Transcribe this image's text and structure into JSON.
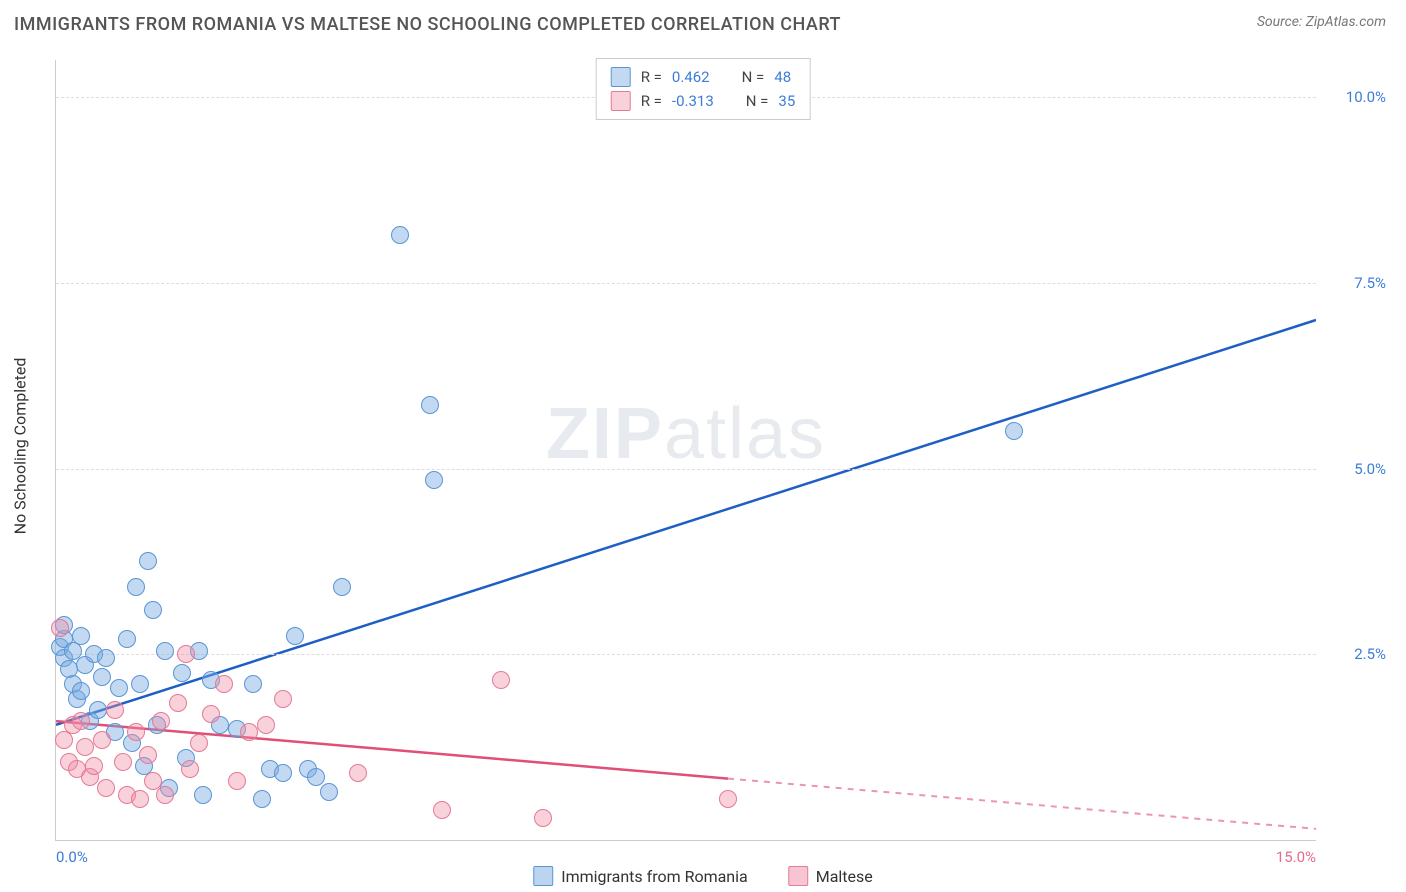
{
  "title": "IMMIGRANTS FROM ROMANIA VS MALTESE NO SCHOOLING COMPLETED CORRELATION CHART",
  "source": "Source: ZipAtlas.com",
  "y_axis_title": "No Schooling Completed",
  "watermark_zip": "ZIP",
  "watermark_atlas": "atlas",
  "chart": {
    "type": "scatter-with-regression",
    "xlim": [
      0,
      15
    ],
    "ylim": [
      0,
      10.5
    ],
    "x_ticks": [
      {
        "v": 0.0,
        "label": "0.0%",
        "color": "#3b7dd8"
      },
      {
        "v": 15.0,
        "label": "15.0%",
        "color": "#e86b8a"
      }
    ],
    "y_ticks": [
      {
        "v": 2.5,
        "label": "2.5%",
        "color": "#3b7dd8"
      },
      {
        "v": 5.0,
        "label": "5.0%",
        "color": "#3b7dd8"
      },
      {
        "v": 7.5,
        "label": "7.5%",
        "color": "#3b7dd8"
      },
      {
        "v": 10.0,
        "label": "10.0%",
        "color": "#3b7dd8"
      }
    ],
    "grid_color": "#dddddd",
    "background_color": "#ffffff",
    "series": [
      {
        "name": "Immigrants from Romania",
        "fill": "rgba(120,170,225,0.45)",
        "stroke": "#5b95d6",
        "line_color": "#1f5fc4",
        "r_label": "R = ",
        "r_value": "0.462",
        "n_label": "N = ",
        "n_value": "48",
        "regression": {
          "x1": 0.0,
          "y1": 1.55,
          "x2": 15.0,
          "y2": 7.0,
          "solid_until_x": 15.0
        },
        "points": [
          [
            0.05,
            2.6
          ],
          [
            0.1,
            2.45
          ],
          [
            0.1,
            2.7
          ],
          [
            0.1,
            2.9
          ],
          [
            0.15,
            2.3
          ],
          [
            0.2,
            2.1
          ],
          [
            0.2,
            2.55
          ],
          [
            0.25,
            1.9
          ],
          [
            0.3,
            2.75
          ],
          [
            0.3,
            2.0
          ],
          [
            0.35,
            2.35
          ],
          [
            0.4,
            1.6
          ],
          [
            0.45,
            2.5
          ],
          [
            0.5,
            1.75
          ],
          [
            0.55,
            2.2
          ],
          [
            0.6,
            2.45
          ],
          [
            0.7,
            1.45
          ],
          [
            0.75,
            2.05
          ],
          [
            0.85,
            2.7
          ],
          [
            0.9,
            1.3
          ],
          [
            0.95,
            3.4
          ],
          [
            1.0,
            2.1
          ],
          [
            1.05,
            1.0
          ],
          [
            1.1,
            3.75
          ],
          [
            1.15,
            3.1
          ],
          [
            1.2,
            1.55
          ],
          [
            1.3,
            2.55
          ],
          [
            1.35,
            0.7
          ],
          [
            1.5,
            2.25
          ],
          [
            1.55,
            1.1
          ],
          [
            1.7,
            2.55
          ],
          [
            1.75,
            0.6
          ],
          [
            1.85,
            2.15
          ],
          [
            1.95,
            1.55
          ],
          [
            2.15,
            1.5
          ],
          [
            2.35,
            2.1
          ],
          [
            2.45,
            0.55
          ],
          [
            2.55,
            0.95
          ],
          [
            2.7,
            0.9
          ],
          [
            2.85,
            2.75
          ],
          [
            3.0,
            0.95
          ],
          [
            3.1,
            0.85
          ],
          [
            3.25,
            0.65
          ],
          [
            3.4,
            3.4
          ],
          [
            4.1,
            8.15
          ],
          [
            4.45,
            5.85
          ],
          [
            4.5,
            4.85
          ],
          [
            11.4,
            5.5
          ]
        ]
      },
      {
        "name": "Maltese",
        "fill": "rgba(240,140,165,0.40)",
        "stroke": "#e47a96",
        "line_color": "#e04f78",
        "r_label": "R = ",
        "r_value": "-0.313",
        "n_label": "N = ",
        "n_value": "35",
        "regression": {
          "x1": 0.0,
          "y1": 1.6,
          "x2": 15.0,
          "y2": 0.15,
          "solid_until_x": 8.0
        },
        "points": [
          [
            0.05,
            2.85
          ],
          [
            0.1,
            1.35
          ],
          [
            0.15,
            1.05
          ],
          [
            0.2,
            1.55
          ],
          [
            0.25,
            0.95
          ],
          [
            0.3,
            1.6
          ],
          [
            0.35,
            1.25
          ],
          [
            0.4,
            0.85
          ],
          [
            0.45,
            1.0
          ],
          [
            0.55,
            1.35
          ],
          [
            0.6,
            0.7
          ],
          [
            0.7,
            1.75
          ],
          [
            0.8,
            1.05
          ],
          [
            0.85,
            0.6
          ],
          [
            0.95,
            1.45
          ],
          [
            1.0,
            0.55
          ],
          [
            1.1,
            1.15
          ],
          [
            1.15,
            0.8
          ],
          [
            1.25,
            1.6
          ],
          [
            1.3,
            0.6
          ],
          [
            1.45,
            1.85
          ],
          [
            1.55,
            2.5
          ],
          [
            1.6,
            0.95
          ],
          [
            1.7,
            1.3
          ],
          [
            1.85,
            1.7
          ],
          [
            2.0,
            2.1
          ],
          [
            2.15,
            0.8
          ],
          [
            2.3,
            1.45
          ],
          [
            2.5,
            1.55
          ],
          [
            2.7,
            1.9
          ],
          [
            3.6,
            0.9
          ],
          [
            4.6,
            0.4
          ],
          [
            5.3,
            2.15
          ],
          [
            5.8,
            0.3
          ],
          [
            8.0,
            0.55
          ]
        ]
      }
    ],
    "legend_bottom": [
      {
        "label": "Immigrants from Romania",
        "fill": "rgba(120,170,225,0.5)",
        "stroke": "#5b95d6"
      },
      {
        "label": "Maltese",
        "fill": "rgba(240,140,165,0.5)",
        "stroke": "#e47a96"
      }
    ]
  }
}
